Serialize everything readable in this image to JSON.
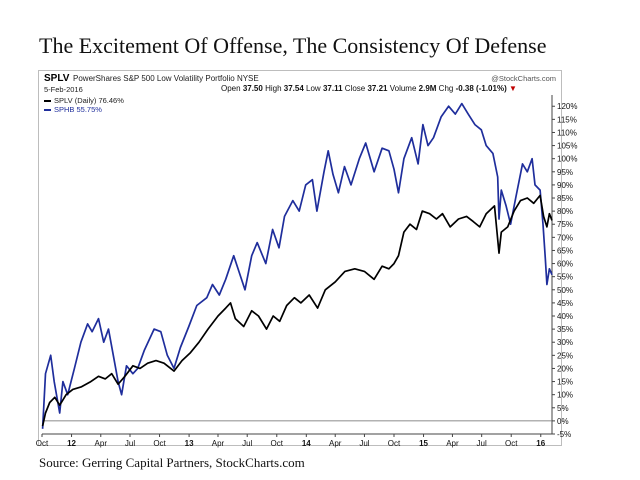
{
  "title": "The Excitement Of Offense, The Consistency Of Defense",
  "source": "Source: Gerring Capital Partners, StockCharts.com",
  "header": {
    "symbol": "SPLV",
    "name": "PowerShares S&P 500 Low Volatility Portfolio NYSE",
    "watermark": "@StockCharts.com",
    "date": "5-Feb-2016",
    "quote": {
      "open_label": "Open",
      "open": "37.50",
      "high_label": "High",
      "high": "37.54",
      "low_label": "Low",
      "low": "37.11",
      "close_label": "Close",
      "close": "37.21",
      "volume_label": "Volume",
      "volume": "2.9M",
      "chg_label": "Chg",
      "chg": "-0.38 (-1.01%)",
      "chg_marker": "▼"
    }
  },
  "legend": [
    {
      "label": "SPLV (Daily) 76.46%",
      "color": "#000000"
    },
    {
      "label": "SPHB 55.75%",
      "color": "#1f2e9c"
    }
  ],
  "chart_data": {
    "type": "line",
    "x_range": [
      "2011-10-01",
      "2016-02-05"
    ],
    "x_ticks": [
      {
        "date": "2011-10-01",
        "label": "Oct"
      },
      {
        "date": "2012-01-01",
        "label": "12"
      },
      {
        "date": "2012-04-01",
        "label": "Apr"
      },
      {
        "date": "2012-07-01",
        "label": "Jul"
      },
      {
        "date": "2012-10-01",
        "label": "Oct"
      },
      {
        "date": "2013-01-01",
        "label": "13"
      },
      {
        "date": "2013-04-01",
        "label": "Apr"
      },
      {
        "date": "2013-07-01",
        "label": "Jul"
      },
      {
        "date": "2013-10-01",
        "label": "Oct"
      },
      {
        "date": "2014-01-01",
        "label": "14"
      },
      {
        "date": "2014-04-01",
        "label": "Apr"
      },
      {
        "date": "2014-07-01",
        "label": "Jul"
      },
      {
        "date": "2014-10-01",
        "label": "Oct"
      },
      {
        "date": "2015-01-01",
        "label": "15"
      },
      {
        "date": "2015-04-01",
        "label": "Apr"
      },
      {
        "date": "2015-07-01",
        "label": "Jul"
      },
      {
        "date": "2015-10-01",
        "label": "Oct"
      },
      {
        "date": "2016-01-01",
        "label": "16"
      }
    ],
    "bold_x_labels": [
      "12",
      "13",
      "14",
      "15",
      "16"
    ],
    "ylim": [
      -5,
      122
    ],
    "y_ticks": [
      -5,
      0,
      5,
      10,
      15,
      20,
      25,
      30,
      35,
      40,
      45,
      50,
      55,
      60,
      65,
      70,
      75,
      80,
      85,
      90,
      95,
      100,
      105,
      110,
      115,
      120
    ],
    "y_tick_suffix": "%",
    "y_axis_side": "right",
    "grid": false,
    "zero_line": true,
    "series": [
      {
        "name": "SPLV (Daily) 76.46%",
        "color": "#000000",
        "points": [
          [
            "2011-10-03",
            -2
          ],
          [
            "2011-10-12",
            3
          ],
          [
            "2011-10-25",
            7
          ],
          [
            "2011-11-10",
            9
          ],
          [
            "2011-11-25",
            6
          ],
          [
            "2011-12-15",
            10
          ],
          [
            "2012-01-05",
            12
          ],
          [
            "2012-02-01",
            13
          ],
          [
            "2012-03-01",
            15
          ],
          [
            "2012-03-25",
            17
          ],
          [
            "2012-04-15",
            16
          ],
          [
            "2012-05-05",
            18
          ],
          [
            "2012-05-25",
            14
          ],
          [
            "2012-06-15",
            17
          ],
          [
            "2012-07-10",
            21
          ],
          [
            "2012-08-01",
            20
          ],
          [
            "2012-08-25",
            22
          ],
          [
            "2012-09-20",
            23
          ],
          [
            "2012-10-15",
            22
          ],
          [
            "2012-11-15",
            19
          ],
          [
            "2012-12-10",
            23
          ],
          [
            "2013-01-05",
            26
          ],
          [
            "2013-02-01",
            30
          ],
          [
            "2013-03-01",
            35
          ],
          [
            "2013-04-01",
            40
          ],
          [
            "2013-04-25",
            43
          ],
          [
            "2013-05-10",
            45
          ],
          [
            "2013-05-25",
            39
          ],
          [
            "2013-06-20",
            36
          ],
          [
            "2013-07-15",
            42
          ],
          [
            "2013-08-05",
            40
          ],
          [
            "2013-08-30",
            35
          ],
          [
            "2013-09-20",
            40
          ],
          [
            "2013-10-10",
            38
          ],
          [
            "2013-11-01",
            44
          ],
          [
            "2013-11-25",
            47
          ],
          [
            "2013-12-15",
            45
          ],
          [
            "2014-01-10",
            48
          ],
          [
            "2014-02-05",
            43
          ],
          [
            "2014-03-01",
            50
          ],
          [
            "2014-04-01",
            53
          ],
          [
            "2014-05-01",
            57
          ],
          [
            "2014-06-01",
            58
          ],
          [
            "2014-07-01",
            57
          ],
          [
            "2014-07-31",
            54
          ],
          [
            "2014-08-25",
            59
          ],
          [
            "2014-09-15",
            58
          ],
          [
            "2014-10-01",
            60
          ],
          [
            "2014-10-15",
            63
          ],
          [
            "2014-11-01",
            72
          ],
          [
            "2014-11-20",
            75
          ],
          [
            "2014-12-10",
            73
          ],
          [
            "2014-12-28",
            80
          ],
          [
            "2015-01-20",
            79
          ],
          [
            "2015-02-10",
            77
          ],
          [
            "2015-03-01",
            79
          ],
          [
            "2015-03-25",
            74
          ],
          [
            "2015-04-20",
            77
          ],
          [
            "2015-05-15",
            78
          ],
          [
            "2015-06-05",
            76
          ],
          [
            "2015-06-25",
            74
          ],
          [
            "2015-07-15",
            79
          ],
          [
            "2015-08-10",
            82
          ],
          [
            "2015-08-24",
            64
          ],
          [
            "2015-08-31",
            72
          ],
          [
            "2015-09-20",
            74
          ],
          [
            "2015-10-10",
            80
          ],
          [
            "2015-10-30",
            84
          ],
          [
            "2015-11-20",
            85
          ],
          [
            "2015-12-10",
            83
          ],
          [
            "2015-12-30",
            86
          ],
          [
            "2016-01-10",
            78
          ],
          [
            "2016-01-20",
            74
          ],
          [
            "2016-01-28",
            79
          ],
          [
            "2016-02-05",
            76.46
          ]
        ]
      },
      {
        "name": "SPHB 55.75%",
        "color": "#1f2e9c",
        "points": [
          [
            "2011-10-03",
            -3
          ],
          [
            "2011-10-12",
            18
          ],
          [
            "2011-10-28",
            25
          ],
          [
            "2011-11-08",
            15
          ],
          [
            "2011-11-25",
            3
          ],
          [
            "2011-12-05",
            15
          ],
          [
            "2011-12-20",
            10
          ],
          [
            "2012-01-10",
            20
          ],
          [
            "2012-01-30",
            30
          ],
          [
            "2012-02-20",
            37
          ],
          [
            "2012-03-05",
            34
          ],
          [
            "2012-03-25",
            39
          ],
          [
            "2012-04-10",
            30
          ],
          [
            "2012-04-25",
            35
          ],
          [
            "2012-05-10",
            25
          ],
          [
            "2012-05-25",
            15
          ],
          [
            "2012-06-05",
            10
          ],
          [
            "2012-06-20",
            21
          ],
          [
            "2012-07-10",
            18
          ],
          [
            "2012-07-25",
            20
          ],
          [
            "2012-08-15",
            27
          ],
          [
            "2012-09-14",
            35
          ],
          [
            "2012-10-05",
            34
          ],
          [
            "2012-10-25",
            25
          ],
          [
            "2012-11-15",
            20
          ],
          [
            "2012-12-05",
            28
          ],
          [
            "2012-12-31",
            36
          ],
          [
            "2013-01-25",
            44
          ],
          [
            "2013-02-25",
            47
          ],
          [
            "2013-03-15",
            52
          ],
          [
            "2013-04-05",
            48
          ],
          [
            "2013-04-25",
            54
          ],
          [
            "2013-05-20",
            63
          ],
          [
            "2013-06-05",
            57
          ],
          [
            "2013-06-24",
            50
          ],
          [
            "2013-07-15",
            63
          ],
          [
            "2013-08-01",
            68
          ],
          [
            "2013-08-28",
            60
          ],
          [
            "2013-09-18",
            73
          ],
          [
            "2013-10-08",
            66
          ],
          [
            "2013-10-25",
            78
          ],
          [
            "2013-11-20",
            84
          ],
          [
            "2013-12-10",
            80
          ],
          [
            "2013-12-30",
            90
          ],
          [
            "2014-01-20",
            92
          ],
          [
            "2014-02-03",
            80
          ],
          [
            "2014-02-25",
            95
          ],
          [
            "2014-03-10",
            103
          ],
          [
            "2014-03-25",
            94
          ],
          [
            "2014-04-11",
            87
          ],
          [
            "2014-04-30",
            97
          ],
          [
            "2014-05-20",
            90
          ],
          [
            "2014-06-15",
            100
          ],
          [
            "2014-07-05",
            106
          ],
          [
            "2014-07-31",
            95
          ],
          [
            "2014-08-25",
            104
          ],
          [
            "2014-09-15",
            103
          ],
          [
            "2014-10-01",
            96
          ],
          [
            "2014-10-15",
            87
          ],
          [
            "2014-11-01",
            100
          ],
          [
            "2014-11-25",
            108
          ],
          [
            "2014-12-15",
            98
          ],
          [
            "2014-12-30",
            113
          ],
          [
            "2015-01-15",
            105
          ],
          [
            "2015-02-01",
            108
          ],
          [
            "2015-02-25",
            116
          ],
          [
            "2015-03-20",
            120
          ],
          [
            "2015-04-10",
            117
          ],
          [
            "2015-04-30",
            121
          ],
          [
            "2015-05-20",
            117
          ],
          [
            "2015-06-10",
            113
          ],
          [
            "2015-06-30",
            111
          ],
          [
            "2015-07-15",
            105
          ],
          [
            "2015-08-05",
            102
          ],
          [
            "2015-08-20",
            93
          ],
          [
            "2015-08-24",
            77
          ],
          [
            "2015-08-31",
            88
          ],
          [
            "2015-09-15",
            82
          ],
          [
            "2015-09-29",
            75
          ],
          [
            "2015-10-15",
            85
          ],
          [
            "2015-11-05",
            98
          ],
          [
            "2015-11-20",
            95
          ],
          [
            "2015-12-05",
            100
          ],
          [
            "2015-12-14",
            90
          ],
          [
            "2015-12-30",
            88
          ],
          [
            "2016-01-08",
            75
          ],
          [
            "2016-01-15",
            62
          ],
          [
            "2016-01-20",
            52
          ],
          [
            "2016-01-28",
            58
          ],
          [
            "2016-02-05",
            55.75
          ]
        ]
      }
    ]
  }
}
